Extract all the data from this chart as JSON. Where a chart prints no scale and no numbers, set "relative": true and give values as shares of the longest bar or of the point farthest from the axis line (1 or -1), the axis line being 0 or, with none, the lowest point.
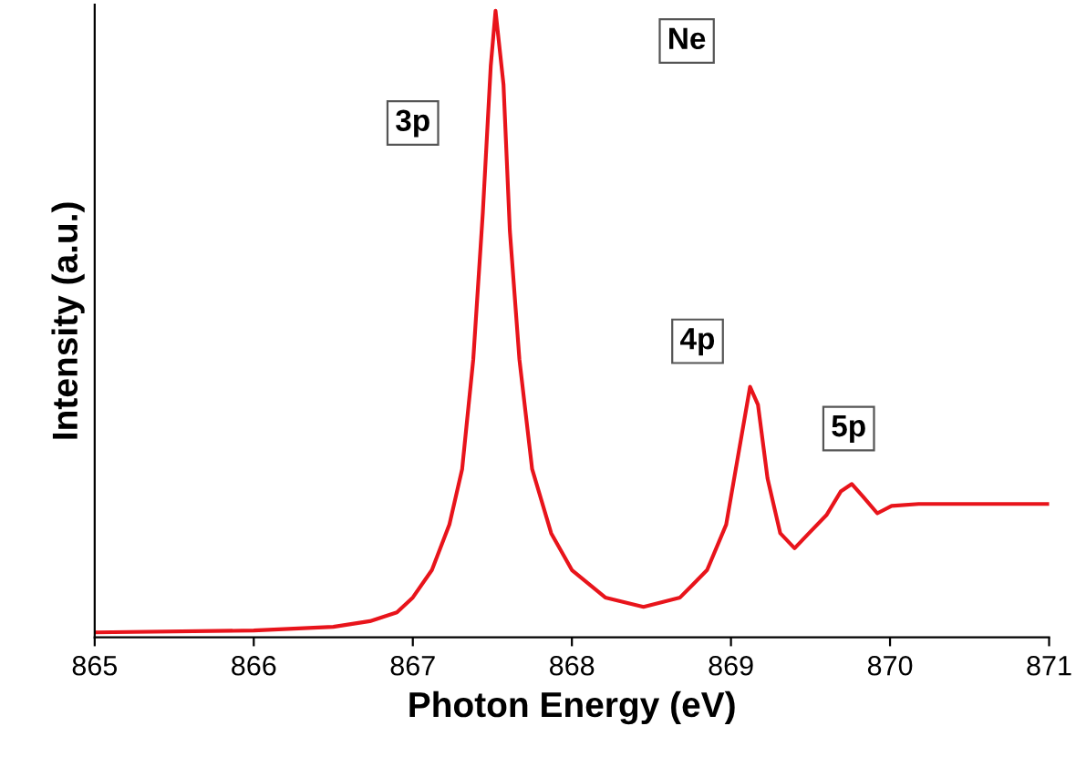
{
  "chart_data": {
    "type": "line",
    "relative": true,
    "xlabel": "Photon Energy (eV)",
    "ylabel": "Intensity (a.u.)",
    "xlim": [
      865,
      871
    ],
    "xticks": [
      865,
      866,
      867,
      868,
      869,
      870,
      871
    ],
    "grid": false,
    "marker": "none",
    "line_style": "solid",
    "x": [
      865,
      866,
      866.5,
      866.73,
      866.9,
      867.0,
      867.12,
      867.23,
      867.31,
      867.38,
      867.44,
      867.49,
      867.52,
      867.57,
      867.61,
      867.67,
      867.75,
      867.87,
      868.0,
      868.21,
      868.45,
      868.68,
      868.85,
      868.97,
      869.05,
      869.12,
      869.17,
      869.23,
      869.31,
      869.4,
      869.49,
      869.6,
      869.69,
      869.76,
      869.83,
      869.92,
      870.01,
      870.18,
      871
    ],
    "series": [
      {
        "color": "#e8141b",
        "values": [
          0.003,
          0.006,
          0.012,
          0.021,
          0.035,
          0.059,
          0.103,
          0.176,
          0.265,
          0.441,
          0.676,
          0.912,
          1.0,
          0.882,
          0.647,
          0.441,
          0.265,
          0.162,
          0.103,
          0.059,
          0.044,
          0.059,
          0.103,
          0.176,
          0.294,
          0.397,
          0.368,
          0.25,
          0.162,
          0.138,
          0.162,
          0.191,
          0.229,
          0.241,
          0.221,
          0.194,
          0.206,
          0.209,
          0.209
        ]
      }
    ],
    "annotations": [
      "Ne",
      {
        "text": "3p",
        "x": 867.0,
        "y": 0.82
      },
      {
        "text": "4p",
        "x": 868.79,
        "y": 0.47
      },
      {
        "text": "5p",
        "x": 869.74,
        "y": 0.33
      }
    ]
  }
}
